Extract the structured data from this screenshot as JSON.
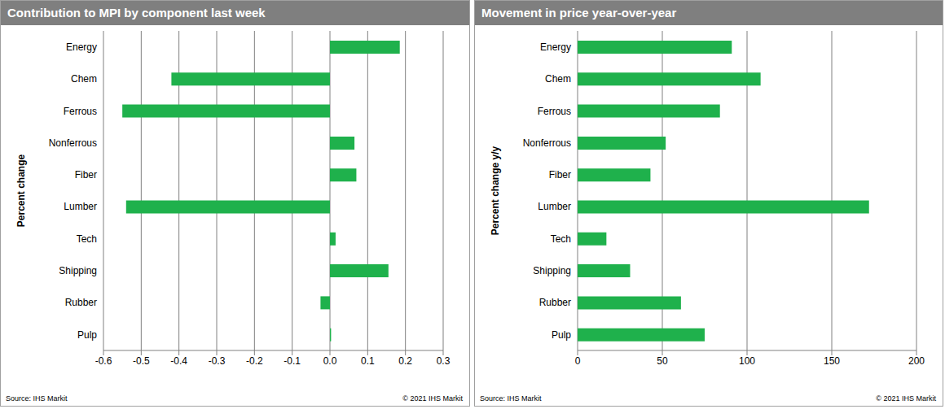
{
  "chart_data": [
    {
      "type": "bar",
      "orientation": "horizontal",
      "title": "Contribution to MPI by component last week",
      "ylabel": "Percent change",
      "categories": [
        "Energy",
        "Chem",
        "Ferrous",
        "Nonferrous",
        "Fiber",
        "Lumber",
        "Tech",
        "Shipping",
        "Rubber",
        "Pulp"
      ],
      "values": [
        0.185,
        -0.42,
        -0.55,
        0.065,
        0.07,
        -0.54,
        0.015,
        0.155,
        -0.025,
        0.003
      ],
      "color": "#1fb14c",
      "xlim": [
        -0.6,
        0.3
      ],
      "xticks": [
        -0.6,
        -0.5,
        -0.4,
        -0.3,
        -0.2,
        -0.1,
        {
          "value": 0,
          "label": "0.0"
        },
        0.1,
        0.2,
        0.3
      ],
      "grid": true,
      "source": "Source: IHS Markit",
      "copyright": "© 2021 IHS Markit"
    },
    {
      "type": "bar",
      "orientation": "horizontal",
      "title": "Movement in price year-over-year",
      "ylabel": "Percent change y/y",
      "categories": [
        "Energy",
        "Chem",
        "Ferrous",
        "Nonferrous",
        "Fiber",
        "Lumber",
        "Tech",
        "Shipping",
        "Rubber",
        "Pulp"
      ],
      "values": [
        91,
        108,
        84,
        52,
        43,
        172,
        17,
        31,
        61,
        75
      ],
      "color": "#1fb14c",
      "xlim": [
        0,
        200
      ],
      "xticks": [
        0,
        50,
        100,
        150,
        200
      ],
      "grid": true,
      "source": "Source: IHS Markit",
      "copyright": "© 2021 IHS Markit"
    }
  ]
}
